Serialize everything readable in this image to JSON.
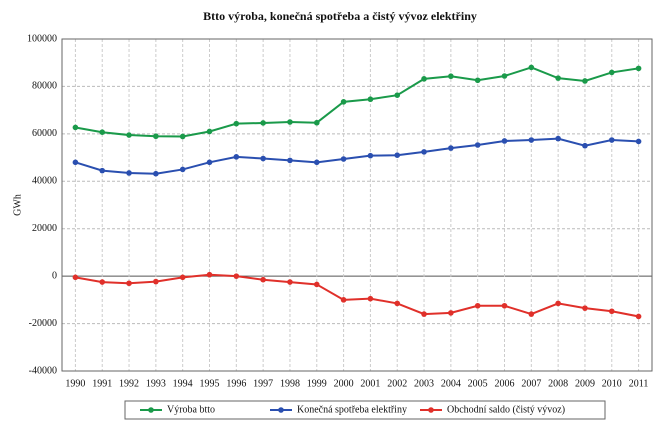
{
  "chart_data": {
    "type": "line",
    "title": "Btto výroba, konečná spotřeba a čistý vývoz elektřiny",
    "y_label": "GWh",
    "categories": [
      "1990",
      "1991",
      "1992",
      "1993",
      "1994",
      "1995",
      "1996",
      "1997",
      "1998",
      "1999",
      "2000",
      "2001",
      "2002",
      "2003",
      "2004",
      "2005",
      "2006",
      "2007",
      "2008",
      "2009",
      "2010",
      "2011"
    ],
    "series": [
      {
        "name": "Výroba btto",
        "color": "#1a9a4a",
        "values": [
          62700,
          60700,
          59500,
          59000,
          58900,
          61000,
          64300,
          64600,
          65000,
          64700,
          73500,
          74600,
          76300,
          83200,
          84300,
          82600,
          84400,
          88000,
          83500,
          82300,
          85900,
          87600
        ]
      },
      {
        "name": "Konečná spotřeba elektřiny",
        "color": "#2a4fb0",
        "values": [
          48000,
          44500,
          43500,
          43200,
          45000,
          48000,
          50300,
          49600,
          48800,
          48000,
          49400,
          50800,
          51000,
          52400,
          54000,
          55300,
          57000,
          57400,
          58000,
          55000,
          57400,
          56800
        ]
      },
      {
        "name": "Obchodní saldo (čistý vývoz)",
        "color": "#e0302a",
        "values": [
          -500,
          -2500,
          -3000,
          -2300,
          -500,
          600,
          0,
          -1500,
          -2500,
          -3500,
          -10000,
          -9500,
          -11500,
          -16000,
          -15500,
          -12500,
          -12500,
          -16000,
          -11500,
          -13500,
          -14800,
          -17000
        ]
      }
    ],
    "ylim": [
      -40000,
      100000
    ],
    "yticks": [
      -40000,
      -20000,
      0,
      20000,
      40000,
      60000,
      80000,
      100000
    ],
    "grid": true,
    "legend": "bottom"
  }
}
